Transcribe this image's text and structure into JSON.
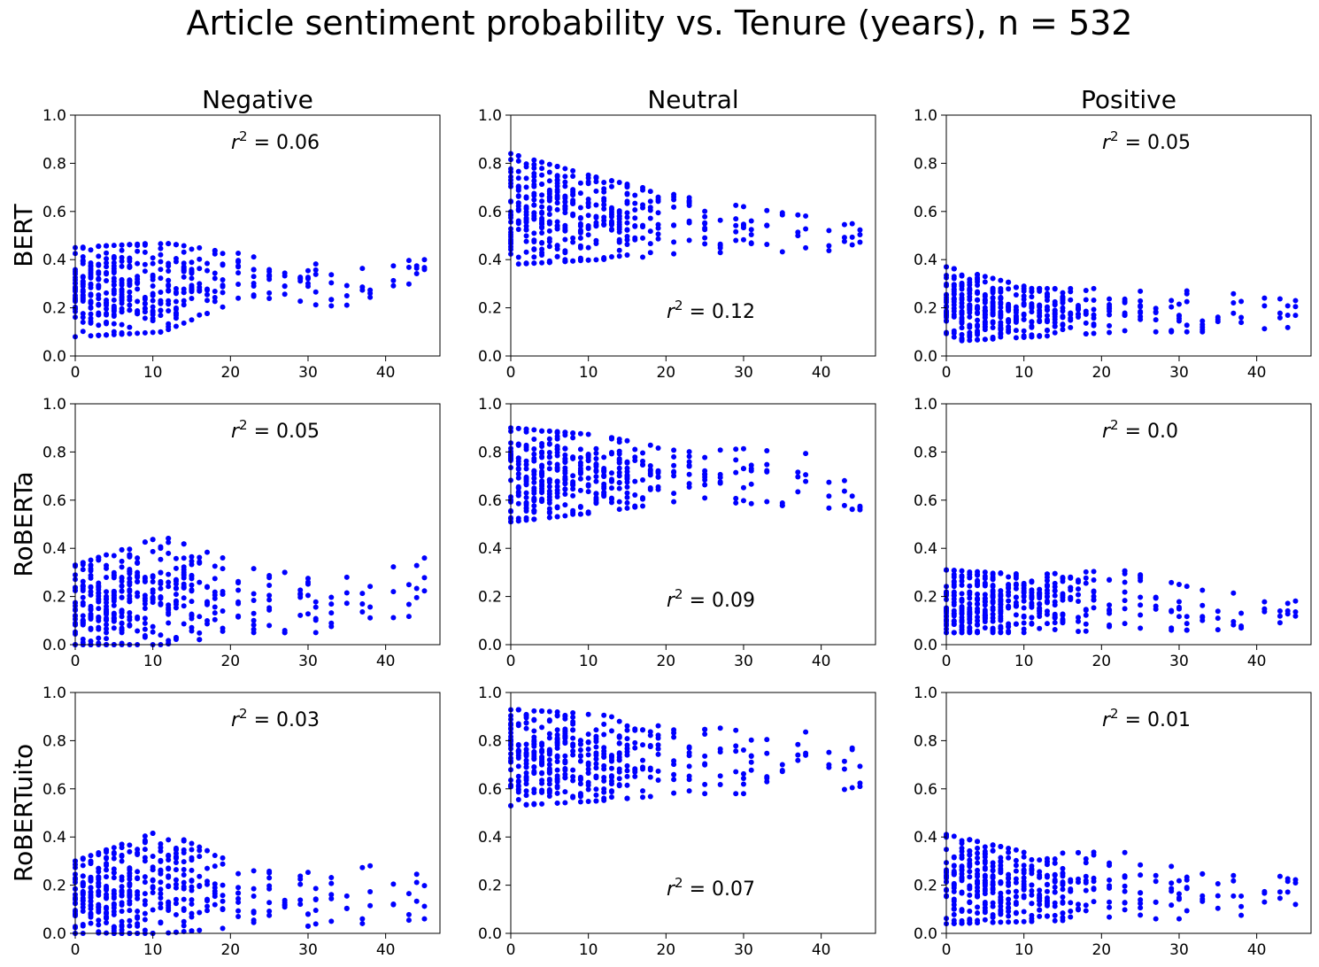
{
  "figure": {
    "title": "Article sentiment probability vs. Tenure (years), n = 532"
  },
  "chart_data": {
    "type": "scatter",
    "title": "Article sentiment probability vs. Tenure (years), n = 532",
    "columns": [
      "Negative",
      "Neutral",
      "Positive"
    ],
    "rows": [
      "BERT",
      "RoBERTa",
      "RoBERTuito"
    ],
    "xlim": [
      0,
      47
    ],
    "ylim": [
      0.0,
      1.0
    ],
    "xticks": [
      0,
      10,
      20,
      30,
      40
    ],
    "yticks": [
      0.0,
      0.2,
      0.4,
      0.6,
      0.8,
      1.0
    ],
    "grid": false,
    "marker_color": "#0000ff",
    "tenure_values": [
      0,
      1,
      2,
      3,
      4,
      5,
      6,
      7,
      8,
      9,
      10,
      11,
      12,
      13,
      14,
      15,
      16,
      17,
      18,
      19,
      21,
      23,
      25,
      27,
      29,
      30,
      31,
      33,
      35,
      37,
      38,
      41,
      43,
      44,
      45
    ],
    "panels": [
      {
        "row": "BERT",
        "column": "Negative",
        "r2_label": "= 0.06",
        "r2_position": "top",
        "trend": {
          "min": [
            0.08,
            0.1,
            0.25,
            0.2,
            0.3
          ],
          "max": [
            0.45,
            0.47,
            0.42,
            0.38,
            0.4
          ]
        }
      },
      {
        "row": "BERT",
        "column": "Neutral",
        "r2_label": "= 0.12",
        "r2_position": "bottom",
        "trend": {
          "min": [
            0.38,
            0.4,
            0.42,
            0.42,
            0.44
          ],
          "max": [
            0.84,
            0.74,
            0.66,
            0.6,
            0.55
          ]
        }
      },
      {
        "row": "BERT",
        "column": "Positive",
        "r2_label": "= 0.05",
        "r2_position": "top",
        "trend": {
          "min": [
            0.06,
            0.08,
            0.1,
            0.1,
            0.12
          ],
          "max": [
            0.37,
            0.28,
            0.28,
            0.27,
            0.23
          ]
        }
      },
      {
        "row": "RoBERTa",
        "column": "Negative",
        "r2_label": "= 0.05",
        "r2_position": "top",
        "trend": {
          "min": [
            0.0,
            0.0,
            0.05,
            0.05,
            0.1
          ],
          "max": [
            0.33,
            0.45,
            0.32,
            0.27,
            0.36
          ]
        }
      },
      {
        "row": "RoBERTa",
        "column": "Neutral",
        "r2_label": "= 0.09",
        "r2_position": "bottom",
        "trend": {
          "min": [
            0.51,
            0.55,
            0.6,
            0.58,
            0.56
          ],
          "max": [
            0.9,
            0.87,
            0.8,
            0.82,
            0.75
          ]
        }
      },
      {
        "row": "RoBERTa",
        "column": "Positive",
        "r2_label": "= 0.0",
        "r2_position": "top",
        "trend": {
          "min": [
            0.05,
            0.05,
            0.06,
            0.06,
            0.08
          ],
          "max": [
            0.31,
            0.29,
            0.31,
            0.22,
            0.2
          ]
        }
      },
      {
        "row": "RoBERTuito",
        "column": "Negative",
        "r2_label": "= 0.03",
        "r2_position": "top",
        "trend": {
          "min": [
            0.0,
            0.0,
            0.03,
            0.03,
            0.06
          ],
          "max": [
            0.3,
            0.43,
            0.26,
            0.25,
            0.33
          ]
        }
      },
      {
        "row": "RoBERTuito",
        "column": "Neutral",
        "r2_label": "= 0.07",
        "r2_position": "bottom",
        "trend": {
          "min": [
            0.53,
            0.55,
            0.58,
            0.58,
            0.56
          ],
          "max": [
            0.93,
            0.91,
            0.84,
            0.87,
            0.78
          ]
        }
      },
      {
        "row": "RoBERTuito",
        "column": "Positive",
        "r2_label": "= 0.01",
        "r2_position": "top",
        "trend": {
          "min": [
            0.04,
            0.05,
            0.06,
            0.06,
            0.1
          ],
          "max": [
            0.41,
            0.33,
            0.34,
            0.24,
            0.24
          ]
        }
      }
    ]
  }
}
